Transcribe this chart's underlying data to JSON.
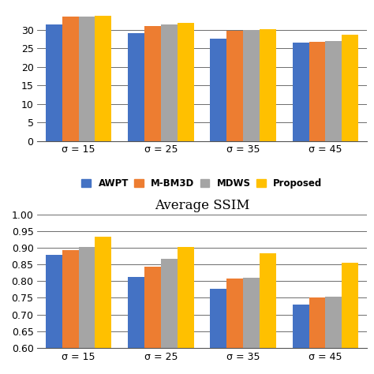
{
  "categories": [
    "σ = 15",
    "σ = 25",
    "σ = 35",
    "σ = 45"
  ],
  "psnr": {
    "AWPT": [
      31.5,
      29.0,
      27.5,
      26.5
    ],
    "M-BM3D": [
      33.5,
      31.0,
      29.8,
      26.7
    ],
    "MDWS": [
      33.5,
      31.5,
      30.0,
      27.0
    ],
    "Proposed": [
      33.8,
      31.8,
      30.2,
      28.6
    ]
  },
  "ssim": {
    "AWPT": [
      0.879,
      0.813,
      0.776,
      0.73
    ],
    "M-BM3D": [
      0.892,
      0.843,
      0.807,
      0.75
    ],
    "MDWS": [
      0.903,
      0.866,
      0.81,
      0.754
    ],
    "Proposed": [
      0.933,
      0.903,
      0.883,
      0.856
    ]
  },
  "colors": {
    "AWPT": "#4472C4",
    "M-BM3D": "#ED7D31",
    "MDWS": "#A5A5A5",
    "Proposed": "#FFC000"
  },
  "psnr_ylim": [
    0,
    36
  ],
  "psnr_yticks": [
    0,
    5,
    10,
    15,
    20,
    25,
    30
  ],
  "ssim_ylim": [
    0.6,
    1.0
  ],
  "ssim_yticks": [
    0.6,
    0.65,
    0.7,
    0.75,
    0.8,
    0.85,
    0.9,
    0.95,
    1.0
  ],
  "ssim_title": "Average SSIM",
  "methods": [
    "AWPT",
    "M-BM3D",
    "MDWS",
    "Proposed"
  ],
  "bar_width": 0.2,
  "background_color": "#ffffff"
}
